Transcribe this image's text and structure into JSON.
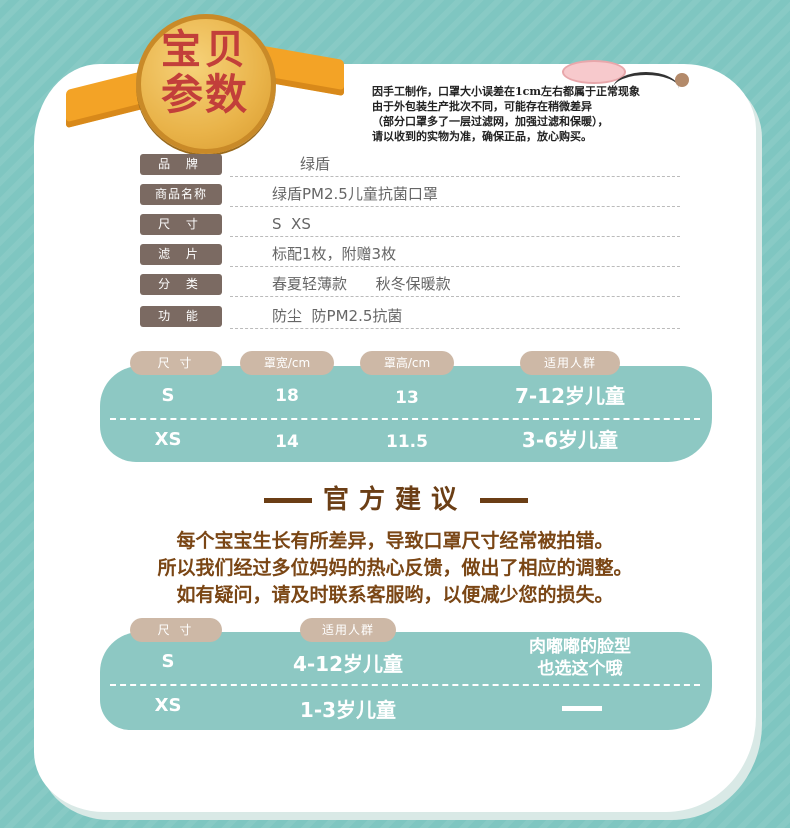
{
  "badge": {
    "line1": "宝贝",
    "line2": "参数"
  },
  "notice": [
    "因手工制作，口罩大小误差在1cm左右都属于正常现象",
    "由于外包装生产批次不同，可能存在稍微差异",
    "（部分口罩多了一层过滤网，加强过滤和保暖），",
    "请以收到的实物为准，确保正品，放心购买。"
  ],
  "params": [
    {
      "label": "品 牌",
      "value": "绿盾"
    },
    {
      "label": "商品名称",
      "value": "绿盾PM2.5儿童抗菌口罩"
    },
    {
      "label": "尺 寸",
      "value": "S  XS"
    },
    {
      "label": "滤 片",
      "value": "标配1枚，附赠3枚"
    },
    {
      "label": "分 类",
      "value": "春夏轻薄款      秋冬保暖款"
    },
    {
      "label": "功 能",
      "value": "防尘  防PM2.5抗菌"
    }
  ],
  "size_table": {
    "headers": [
      "尺 寸",
      "罩宽/cm",
      "罩高/cm",
      "适用人群"
    ],
    "rows": [
      {
        "size": "S",
        "width": "18",
        "height": "13",
        "age": "7-12岁儿童"
      },
      {
        "size": "XS",
        "width": "14",
        "height": "11.5",
        "age": "3-6岁儿童"
      }
    ]
  },
  "advice": {
    "title": "官方建议",
    "lines": [
      "每个宝宝生长有所差异，导致口罩尺寸经常被拍错。",
      "所以我们经过多位妈妈的热心反馈，做出了相应的调整。",
      "如有疑问，请及时联系客服哟，以便减少您的损失。"
    ]
  },
  "rec_table": {
    "headers": [
      "尺 寸",
      "适用人群"
    ],
    "rows": [
      {
        "size": "S",
        "age": "4-12岁儿童",
        "note_line1": "肉嘟嘟的脸型",
        "note_line2": "也选这个哦"
      },
      {
        "size": "XS",
        "age": "1-3岁儿童"
      }
    ]
  }
}
